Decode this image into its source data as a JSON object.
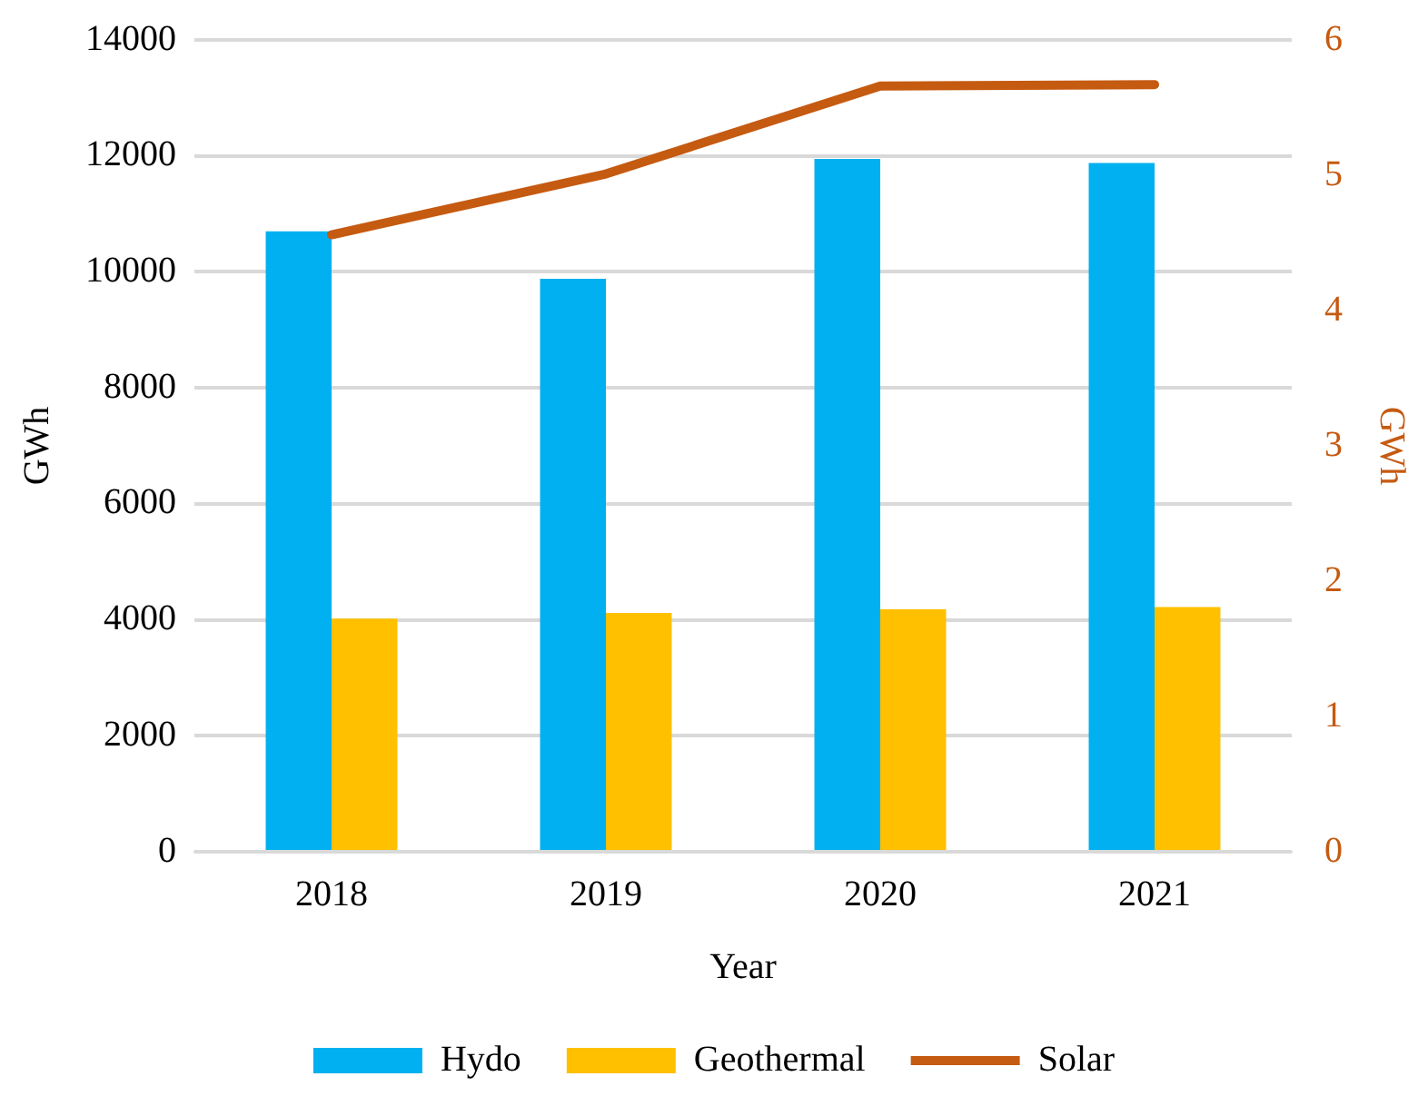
{
  "chart_data": {
    "type": "bar",
    "xlabel": "Year",
    "ylabel": "GWh",
    "y2label": "GWh",
    "categories": [
      "2018",
      "2019",
      "2020",
      "2021"
    ],
    "series": [
      {
        "name": "Hydo",
        "color": "#00b0f0",
        "values": [
          10700,
          9880,
          11950,
          11880
        ]
      },
      {
        "name": "Geothermal",
        "color": "#ffc000",
        "values": [
          4020,
          4120,
          4180,
          4220
        ]
      },
      {
        "name": "Solar",
        "type": "line",
        "axis": "y2",
        "color": "#c55a11",
        "values": [
          4.56,
          5.01,
          5.66,
          5.67
        ]
      }
    ],
    "ylim": [
      0,
      14000
    ],
    "yticks": [
      0,
      2000,
      4000,
      6000,
      8000,
      10000,
      12000,
      14000
    ],
    "y2lim": [
      0,
      6
    ],
    "y2ticks": [
      0,
      1,
      2,
      3,
      4,
      5,
      6
    ],
    "grid": "y",
    "legend": "bottom",
    "marker": "none",
    "line_style": "solid"
  }
}
